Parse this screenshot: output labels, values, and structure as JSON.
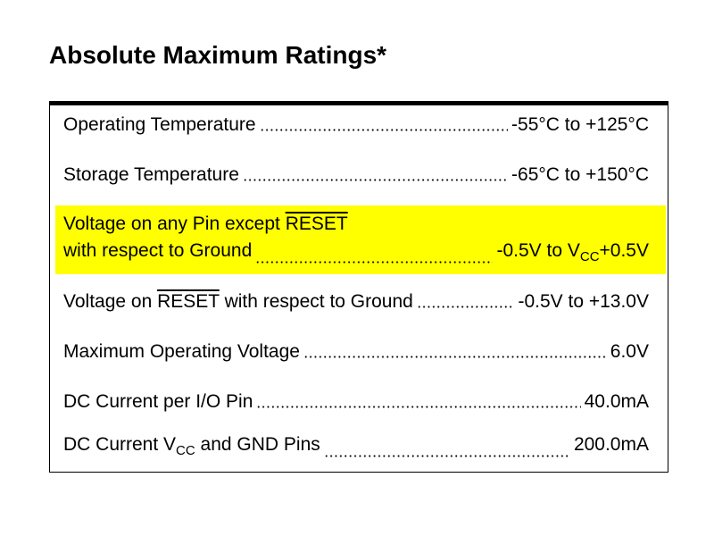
{
  "title": "Absolute Maximum Ratings*",
  "ratings": [
    {
      "parameter": [
        "Operating Temperature"
      ],
      "value": [
        "-55°C to +125°C"
      ]
    },
    {
      "parameter": [
        "Storage Temperature"
      ],
      "value": [
        "-65°C to +150°C"
      ]
    },
    {
      "parameter": [
        "Voltage on any Pin except ",
        "RESET",
        "with respect to Ground"
      ],
      "value": [
        "-0.5V to V",
        "CC",
        "+0.5V"
      ]
    },
    {
      "parameter": [
        "Voltage on ",
        "RESET",
        " with respect to Ground"
      ],
      "value": [
        "-0.5V to +13.0V"
      ]
    },
    {
      "parameter": [
        "Maximum Operating Voltage"
      ],
      "value": [
        "6.0V"
      ]
    },
    {
      "parameter": [
        "DC Current per I/O Pin"
      ],
      "value": [
        "40.0mA"
      ]
    },
    {
      "parameter": [
        "DC Current V",
        "CC",
        " and GND Pins"
      ],
      "value": [
        "200.0mA"
      ]
    }
  ]
}
